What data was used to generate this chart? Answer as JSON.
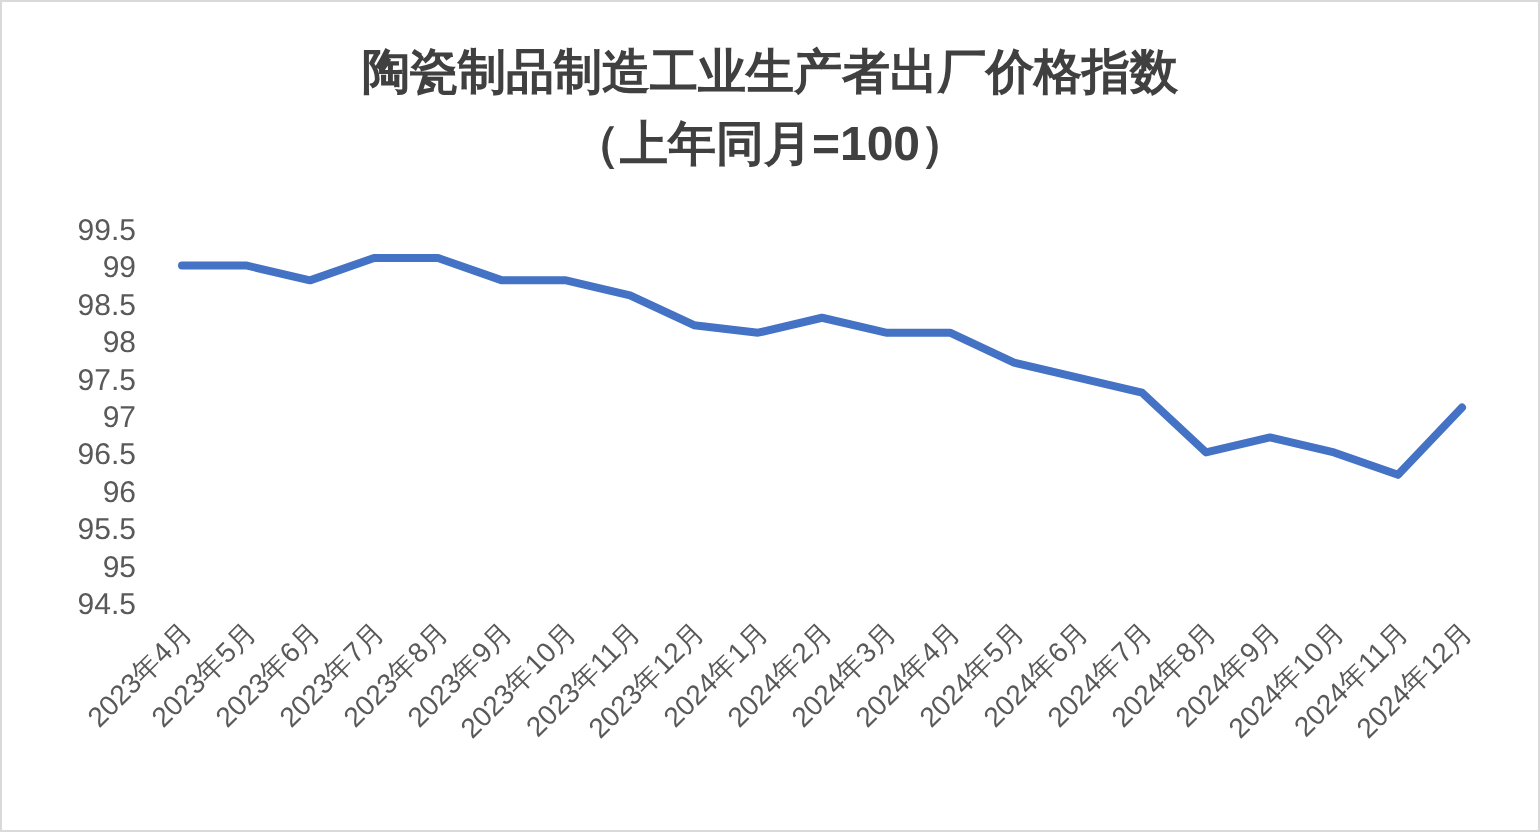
{
  "chart_data": {
    "type": "line",
    "title": "陶瓷制品制造工业生产者出厂价格指数",
    "subtitle": "（上年同月=100）",
    "categories": [
      "2023年4月",
      "2023年5月",
      "2023年6月",
      "2023年7月",
      "2023年8月",
      "2023年9月",
      "2023年10月",
      "2023年11月",
      "2023年12月",
      "2024年1月",
      "2024年2月",
      "2024年3月",
      "2024年4月",
      "2024年5月",
      "2024年6月",
      "2024年7月",
      "2024年8月",
      "2024年9月",
      "2024年10月",
      "2024年11月",
      "2024年12月"
    ],
    "series": [
      {
        "color": "#4472c4",
        "values": [
          99.0,
          99.0,
          98.8,
          99.1,
          99.1,
          98.8,
          98.8,
          98.6,
          98.2,
          98.1,
          98.3,
          98.1,
          98.1,
          97.7,
          97.5,
          97.3,
          96.5,
          96.7,
          96.5,
          96.2,
          97.1
        ]
      }
    ],
    "ylim": [
      94.5,
      99.5
    ],
    "yticks": [
      94.5,
      95,
      95.5,
      96,
      96.5,
      97,
      97.5,
      98,
      98.5,
      99,
      99.5
    ],
    "grid": false,
    "marker": "none",
    "line_style": "solid"
  }
}
